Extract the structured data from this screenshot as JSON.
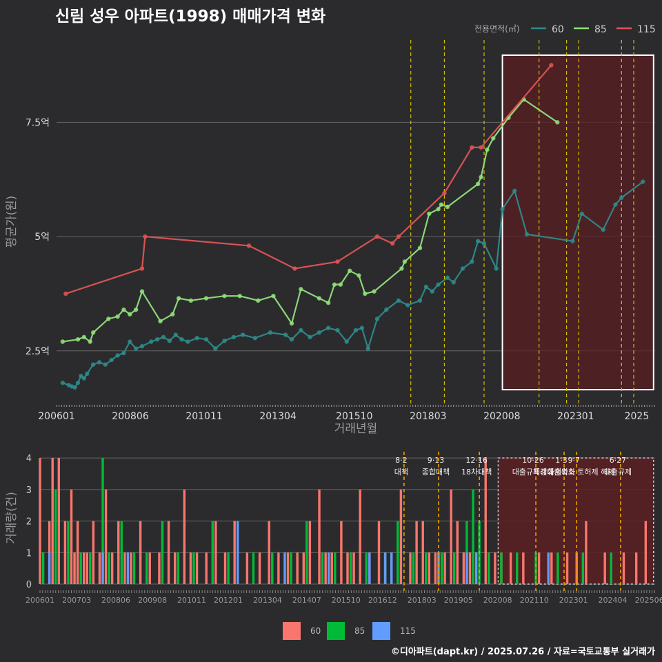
{
  "title": "신림 성우 아파트(1998) 매매가격 변화",
  "footer": "©디아파트(dapt.kr) / 2025.07.26 / 자료=국토교통부 실거래가",
  "colors": {
    "s60": "#2e8b8b",
    "s85": "#90e07a",
    "s115": "#e05555",
    "vol60": "#f8766d",
    "vol85": "#00ba38",
    "vol115": "#619cff",
    "policy": "#d4c000",
    "highlight_fill": "#5a1e22"
  },
  "chart_data": [
    {
      "type": "line",
      "title": "신림 성우 아파트(1998) 매매가격 변화",
      "xlabel": "거래년월",
      "ylabel": "평균가(원)",
      "legend_title": "전용면적(㎡)",
      "x_ticks": [
        "200601",
        "200806",
        "201011",
        "201304",
        "201510",
        "201803",
        "202008",
        "202301",
        "2025"
      ],
      "y_ticks": [
        {
          "value": 2.5,
          "label": "2.5억"
        },
        {
          "value": 5,
          "label": "5억"
        },
        {
          "value": 7.5,
          "label": "7.5억"
        }
      ],
      "xlim": [
        2006.0,
        2025.6
      ],
      "ylim": [
        1.35,
        9.3
      ],
      "policy_lines": [
        2017.6,
        2018.7,
        2020.0,
        2021.8,
        2022.7,
        2023.1,
        2024.5,
        2024.9
      ],
      "highlight_range": [
        2020.6,
        2025.55
      ],
      "series": [
        {
          "name": "60",
          "color": "#2e8b8b",
          "x": [
            2006.2,
            2006.4,
            2006.5,
            2006.6,
            2006.7,
            2006.8,
            2006.9,
            2007.0,
            2007.2,
            2007.4,
            2007.6,
            2007.8,
            2008.0,
            2008.2,
            2008.4,
            2008.6,
            2008.8,
            2009.1,
            2009.3,
            2009.5,
            2009.7,
            2009.9,
            2010.1,
            2010.3,
            2010.6,
            2010.9,
            2011.2,
            2011.5,
            2011.8,
            2012.1,
            2012.5,
            2013.0,
            2013.5,
            2013.7,
            2014.0,
            2014.3,
            2014.6,
            2014.9,
            2015.2,
            2015.5,
            2015.8,
            2016.0,
            2016.2,
            2016.5,
            2016.8,
            2017.2,
            2017.5,
            2017.9,
            2018.1,
            2018.3,
            2018.5,
            2018.8,
            2019.0,
            2019.3,
            2019.6,
            2019.8,
            2020.0,
            2020.4,
            2020.6,
            2021.0,
            2021.4,
            2022.9,
            2023.2,
            2023.9,
            2024.3,
            2024.5,
            2025.2
          ],
          "y": [
            1.8,
            1.75,
            1.72,
            1.7,
            1.8,
            1.95,
            1.9,
            2.0,
            2.2,
            2.25,
            2.2,
            2.3,
            2.4,
            2.45,
            2.7,
            2.55,
            2.6,
            2.7,
            2.75,
            2.8,
            2.72,
            2.85,
            2.75,
            2.7,
            2.78,
            2.75,
            2.55,
            2.72,
            2.8,
            2.85,
            2.78,
            2.9,
            2.85,
            2.75,
            2.95,
            2.8,
            2.9,
            3.0,
            2.95,
            2.7,
            2.95,
            3.0,
            2.55,
            3.2,
            3.4,
            3.6,
            3.5,
            3.6,
            3.9,
            3.8,
            3.95,
            4.1,
            4.0,
            4.3,
            4.45,
            4.9,
            4.85,
            4.3,
            5.6,
            6.0,
            5.05,
            4.9,
            5.5,
            5.15,
            5.7,
            5.85,
            6.2
          ]
        },
        {
          "name": "85",
          "color": "#90e07a",
          "x": [
            2006.2,
            2006.7,
            2006.9,
            2007.1,
            2007.2,
            2007.7,
            2008.0,
            2008.2,
            2008.4,
            2008.6,
            2008.8,
            2009.4,
            2009.8,
            2010.0,
            2010.4,
            2010.9,
            2011.5,
            2012.0,
            2012.6,
            2013.1,
            2013.7,
            2014.0,
            2014.6,
            2014.9,
            2015.1,
            2015.3,
            2015.6,
            2015.9,
            2016.1,
            2016.4,
            2017.3,
            2017.4,
            2017.9,
            2018.2,
            2018.5,
            2018.6,
            2018.8,
            2019.8,
            2019.9,
            2020.1,
            2020.3,
            2020.8,
            2021.3,
            2022.4
          ],
          "y": [
            2.7,
            2.75,
            2.8,
            2.7,
            2.9,
            3.2,
            3.25,
            3.4,
            3.3,
            3.4,
            3.8,
            3.15,
            3.3,
            3.65,
            3.6,
            3.65,
            3.7,
            3.7,
            3.6,
            3.7,
            3.1,
            3.85,
            3.65,
            3.55,
            3.95,
            3.95,
            4.25,
            4.15,
            3.75,
            3.8,
            4.3,
            4.45,
            4.75,
            5.5,
            5.6,
            5.7,
            5.65,
            6.15,
            6.3,
            6.9,
            7.15,
            7.6,
            8.0,
            7.5
          ]
        },
        {
          "name": "115",
          "color": "#e05555",
          "x": [
            2006.3,
            2008.8,
            2008.9,
            2012.3,
            2013.8,
            2015.2,
            2016.5,
            2017.0,
            2017.2,
            2018.7,
            2019.6,
            2019.9,
            2022.2
          ],
          "y": [
            3.75,
            4.3,
            5.0,
            4.8,
            4.3,
            4.45,
            5.0,
            4.85,
            5.0,
            5.95,
            6.95,
            6.95,
            8.75
          ]
        }
      ]
    },
    {
      "type": "bar",
      "title": "",
      "xlabel": "",
      "ylabel": "거래량(건)",
      "x_ticks": [
        "200601",
        "200703",
        "200806",
        "200908",
        "201011",
        "201201",
        "201304",
        "201407",
        "201510",
        "201612",
        "201803",
        "201905",
        "202008",
        "202110",
        "202301",
        "202404",
        "202506"
      ],
      "y_ticks": [
        0,
        1,
        2,
        3,
        4
      ],
      "ylim": [
        0,
        4.2
      ],
      "xlim": [
        2006.0,
        2025.6
      ],
      "policy_labels": [
        {
          "x": 2017.6,
          "label": "8·2 대책"
        },
        {
          "x": 2018.7,
          "label": "9·13 종합대책"
        },
        {
          "x": 2020.0,
          "label": "12·16 18차대책"
        },
        {
          "x": 2021.8,
          "label": "10·26 대출규제강화"
        },
        {
          "x": 2022.7,
          "label": "1·3 규제완화"
        },
        {
          "x": 2023.1,
          "label": "9·7 특례대출축소 토허제 해제"
        },
        {
          "x": 2024.5,
          "label": "6·27 대출규제"
        }
      ],
      "highlight_range": [
        2020.6,
        2025.55
      ],
      "series": [
        {
          "name": "60",
          "color": "#f8766d",
          "x": [
            2006.0,
            2006.3,
            2006.4,
            2006.6,
            2006.8,
            2007.0,
            2007.1,
            2007.2,
            2007.4,
            2007.5,
            2007.7,
            2007.9,
            2008.1,
            2008.3,
            2008.5,
            2008.7,
            2008.9,
            2009.2,
            2009.5,
            2009.8,
            2010.1,
            2010.3,
            2010.6,
            2010.8,
            2011.0,
            2011.3,
            2011.6,
            2011.9,
            2012.2,
            2012.6,
            2013.0,
            2013.3,
            2013.6,
            2013.9,
            2014.2,
            2014.4,
            2014.6,
            2014.9,
            2015.1,
            2015.3,
            2015.6,
            2015.8,
            2016.0,
            2016.2,
            2016.5,
            2016.8,
            2017.0,
            2017.2,
            2017.5,
            2017.8,
            2018.0,
            2018.2,
            2018.4,
            2018.6,
            2018.9,
            2019.1,
            2019.3,
            2019.5,
            2019.7,
            2019.9,
            2020.2,
            2020.5,
            2020.7,
            2021.0,
            2021.4,
            2021.9,
            2022.3,
            2022.8,
            2023.1,
            2023.4,
            2024.0,
            2024.6,
            2025.0,
            2025.3
          ],
          "y": [
            4,
            2,
            4,
            4,
            2,
            3,
            1,
            2,
            1,
            1,
            2,
            1,
            3,
            1,
            2,
            1,
            1,
            2,
            1,
            1,
            2,
            1,
            3,
            1,
            1,
            1,
            2,
            1,
            2,
            1,
            1,
            2,
            1,
            1,
            1,
            1,
            2,
            3,
            1,
            1,
            2,
            1,
            1,
            3,
            1,
            2,
            1,
            1,
            3,
            1,
            2,
            2,
            1,
            1,
            1,
            3,
            2,
            1,
            1,
            1,
            4,
            1,
            1,
            1,
            1,
            1,
            1,
            1,
            1,
            2,
            1,
            1,
            1,
            2
          ]
        },
        {
          "name": "85",
          "color": "#00ba38",
          "x": [
            2006.1,
            2006.5,
            2006.9,
            2007.3,
            2007.6,
            2008.0,
            2008.2,
            2008.6,
            2009.0,
            2009.4,
            2009.9,
            2010.4,
            2010.9,
            2011.5,
            2012.0,
            2012.8,
            2013.4,
            2014.0,
            2014.5,
            2015.0,
            2015.4,
            2015.9,
            2016.4,
            2017.0,
            2017.4,
            2017.9,
            2018.3,
            2018.8,
            2019.2,
            2019.6,
            2019.8,
            2020.0,
            2020.3,
            2020.7,
            2021.2,
            2021.8,
            2022.5,
            2023.3,
            2024.2
          ],
          "y": [
            1,
            3,
            2,
            1,
            1,
            4,
            1,
            2,
            1,
            1,
            2,
            1,
            1,
            2,
            1,
            1,
            1,
            1,
            2,
            1,
            1,
            1,
            1,
            1,
            2,
            1,
            1,
            1,
            1,
            2,
            3,
            2,
            1,
            1,
            1,
            1,
            1,
            1,
            1
          ]
        },
        {
          "name": "115",
          "color": "#619cff",
          "x": [
            2006.3,
            2008.0,
            2008.8,
            2012.3,
            2013.8,
            2015.2,
            2016.5,
            2017.0,
            2017.2,
            2018.7,
            2019.6,
            2019.9,
            2022.2
          ],
          "y": [
            1,
            1,
            1,
            2,
            1,
            1,
            1,
            1,
            1,
            1,
            1,
            1,
            1
          ]
        }
      ]
    }
  ]
}
